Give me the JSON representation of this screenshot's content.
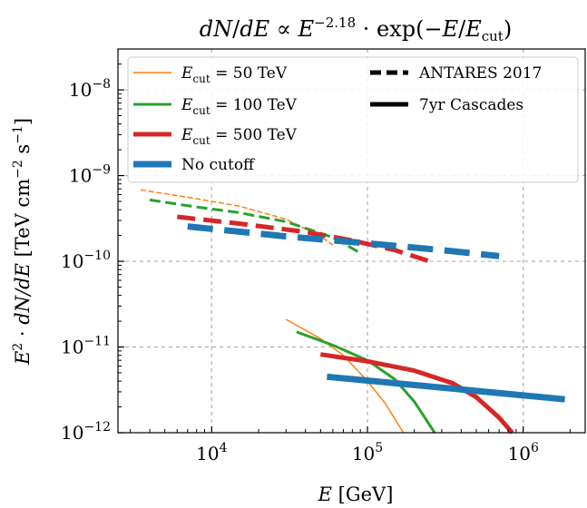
{
  "chart_data": {
    "type": "line",
    "title": "dN/dE ∝ E^−2.18 · exp(−E/E_cut)",
    "xlabel": "E [GeV]",
    "ylabel": "E² · dN/dE  [TeV cm⁻² s⁻¹]",
    "x_scale": "log",
    "y_scale": "log",
    "xlim": [
      2500,
      2500000
    ],
    "ylim": [
      1e-12,
      3e-08
    ],
    "grid": true,
    "grid_style": "dashed",
    "legend_position": "top",
    "x_ticks": [
      {
        "value": 10000,
        "base": "10",
        "exp": "4"
      },
      {
        "value": 100000,
        "base": "10",
        "exp": "5"
      },
      {
        "value": 1000000,
        "base": "10",
        "exp": "6"
      }
    ],
    "y_ticks": [
      {
        "value": 1e-12,
        "base": "10",
        "exp": "−12"
      },
      {
        "value": 1e-11,
        "base": "10",
        "exp": "−11"
      },
      {
        "value": 1e-10,
        "base": "10",
        "exp": "−10"
      },
      {
        "value": 1e-09,
        "base": "10",
        "exp": "−9"
      },
      {
        "value": 1e-08,
        "base": "10",
        "exp": "−8"
      }
    ],
    "legend_cutoffs": [
      {
        "label": "E_cut = 50 TeV",
        "color": "#ff7f0e",
        "width": 1.5
      },
      {
        "label": "E_cut = 100 TeV",
        "color": "#2ca02c",
        "width": 3
      },
      {
        "label": "E_cut = 500 TeV",
        "color": "#d62728",
        "width": 5
      },
      {
        "label": "No cutoff",
        "color": "#1f77b4",
        "width": 7
      }
    ],
    "legend_datasets": [
      {
        "label": "ANTARES 2017",
        "dash": true
      },
      {
        "label": "7yr Cascades",
        "dash": false
      }
    ],
    "series": [
      {
        "name": "E_cut = 50 TeV",
        "dataset": "ANTARES 2017",
        "color": "#ff7f0e",
        "width": 1.5,
        "dash": true,
        "x": [
          3500,
          7000,
          15000,
          30000,
          50000,
          60000
        ],
        "y": [
          6.8e-10,
          5.6e-10,
          4.4e-10,
          3.1e-10,
          1.95e-10,
          1.55e-10
        ]
      },
      {
        "name": "E_cut = 100 TeV",
        "dataset": "ANTARES 2017",
        "color": "#2ca02c",
        "width": 3,
        "dash": true,
        "x": [
          4000,
          8000,
          15000,
          30000,
          60000,
          90000
        ],
        "y": [
          5.2e-10,
          4.3e-10,
          3.7e-10,
          2.9e-10,
          1.9e-10,
          1.25e-10
        ]
      },
      {
        "name": "E_cut = 500 TeV",
        "dataset": "ANTARES 2017",
        "color": "#d62728",
        "width": 5,
        "dash": true,
        "x": [
          6000,
          15000,
          40000,
          80000,
          150000,
          250000
        ],
        "y": [
          3.3e-10,
          2.75e-10,
          2.2e-10,
          1.75e-10,
          1.35e-10,
          1e-10
        ]
      },
      {
        "name": "No cutoff",
        "dataset": "ANTARES 2017",
        "color": "#1f77b4",
        "width": 7,
        "dash": true,
        "x": [
          7000,
          30000,
          100000,
          300000,
          700000
        ],
        "y": [
          2.55e-10,
          1.95e-10,
          1.62e-10,
          1.35e-10,
          1.15e-10
        ]
      },
      {
        "name": "E_cut = 50 TeV",
        "dataset": "7yr Cascades",
        "color": "#ff7f0e",
        "width": 1.5,
        "dash": false,
        "x": [
          30000,
          50000,
          70000,
          100000,
          130000,
          170000
        ],
        "y": [
          2.1e-11,
          1.25e-11,
          8e-12,
          4e-12,
          2.2e-12,
          1e-12
        ]
      },
      {
        "name": "E_cut = 100 TeV",
        "dataset": "7yr Cascades",
        "color": "#2ca02c",
        "width": 3,
        "dash": false,
        "x": [
          35000,
          60000,
          100000,
          150000,
          200000,
          270000
        ],
        "y": [
          1.5e-11,
          1.05e-11,
          7e-12,
          4.2e-12,
          2.3e-12,
          1e-12
        ]
      },
      {
        "name": "E_cut = 500 TeV",
        "dataset": "7yr Cascades",
        "color": "#d62728",
        "width": 5,
        "dash": false,
        "x": [
          50000,
          100000,
          200000,
          350000,
          500000,
          700000,
          850000
        ],
        "y": [
          8.2e-12,
          6.8e-12,
          5.3e-12,
          3.8e-12,
          2.6e-12,
          1.5e-12,
          1e-12
        ]
      },
      {
        "name": "No cutoff",
        "dataset": "7yr Cascades",
        "color": "#1f77b4",
        "width": 7,
        "dash": false,
        "x": [
          55000,
          1850000
        ],
        "y": [
          4.5e-12,
          2.45e-12
        ]
      }
    ]
  }
}
